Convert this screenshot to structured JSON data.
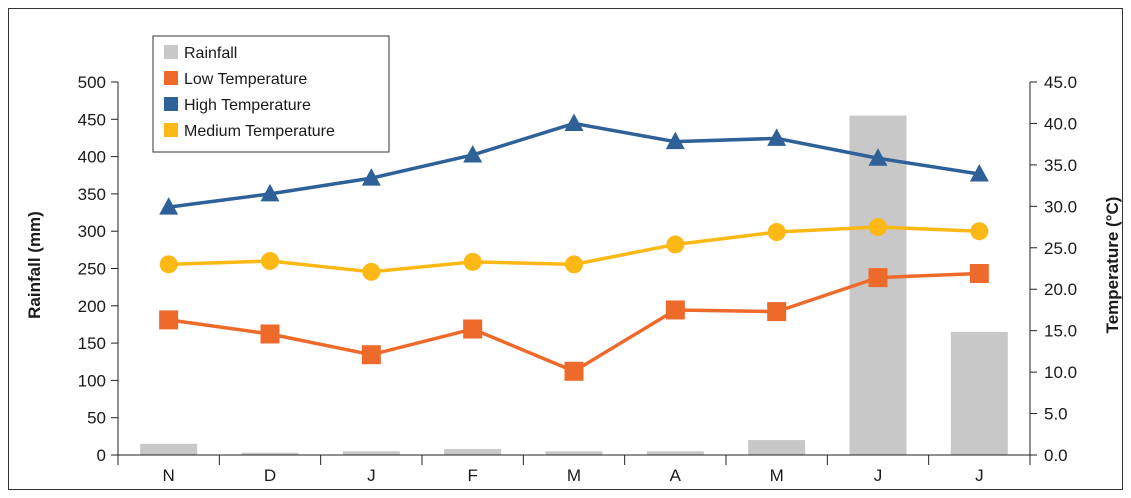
{
  "chart_data": {
    "type": "bar+line",
    "categories": [
      "N",
      "D",
      "J",
      "F",
      "M",
      "A",
      "M",
      "J",
      "J"
    ],
    "series": [
      {
        "name": "Rainfall",
        "type": "bar",
        "axis": "left",
        "color": "#c8c8c8",
        "values": [
          15,
          3,
          5,
          8,
          5,
          5,
          20,
          455,
          165
        ]
      },
      {
        "name": "Low Temperature",
        "type": "line",
        "axis": "right",
        "color": "#ee6a2a",
        "marker": "square",
        "values": [
          16.3,
          14.6,
          12.1,
          15.2,
          10.1,
          17.5,
          17.3,
          21.4,
          21.9
        ]
      },
      {
        "name": "High Temperature",
        "type": "line",
        "axis": "right",
        "color": "#2f6199",
        "marker": "triangle",
        "values": [
          29.9,
          31.5,
          33.4,
          36.2,
          40.0,
          37.8,
          38.2,
          35.8,
          33.9
        ]
      },
      {
        "name": "Medium Temperature",
        "type": "line",
        "axis": "right",
        "color": "#fcb814",
        "marker": "circle",
        "values": [
          23.0,
          23.4,
          22.1,
          23.3,
          23.0,
          25.4,
          26.9,
          27.5,
          27.0
        ]
      }
    ],
    "y_left": {
      "label": "Rainfall (mm)",
      "ylim": [
        0,
        500
      ],
      "ticks": [
        "0",
        "50",
        "100",
        "150",
        "200",
        "250",
        "300",
        "350",
        "400",
        "450",
        "500"
      ]
    },
    "y_right": {
      "label": "Temperature (°C)",
      "ylim": [
        0,
        45
      ],
      "ticks": [
        "0.0",
        "5.0",
        "10.0",
        "15.0",
        "20.0",
        "25.0",
        "30.0",
        "35.0",
        "40.0",
        "45.0"
      ]
    },
    "legend": {
      "placement": "top-left"
    },
    "grid": false
  }
}
